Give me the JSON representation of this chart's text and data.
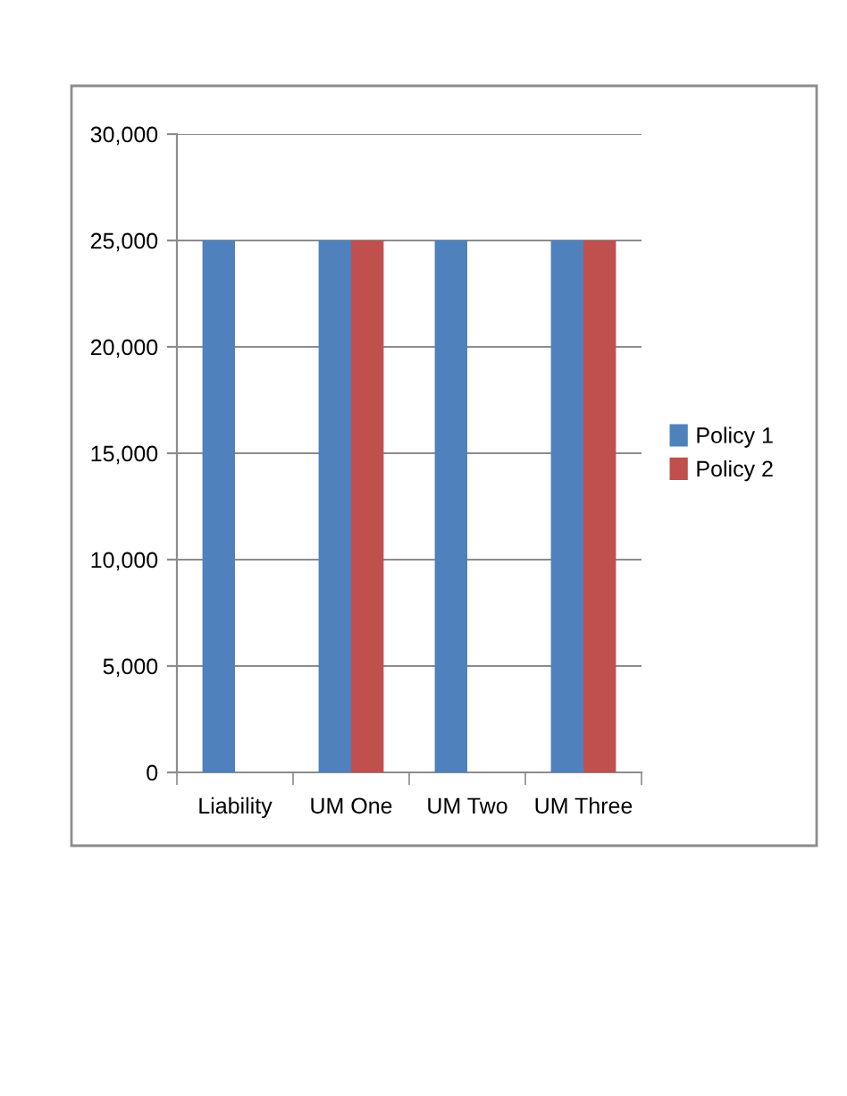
{
  "chart_data": {
    "type": "bar",
    "categories": [
      "Liability",
      "UM One",
      "UM Two",
      "UM Three"
    ],
    "series": [
      {
        "name": "Policy 1",
        "color": "#4f81bd",
        "values": [
          25000,
          25000,
          25000,
          25000
        ]
      },
      {
        "name": "Policy 2",
        "color": "#c0504d",
        "values": [
          null,
          25000,
          null,
          25000
        ]
      }
    ],
    "ylim": [
      0,
      30000
    ],
    "yticks": [
      {
        "value": 0,
        "label": "0"
      },
      {
        "value": 5000,
        "label": "5,000"
      },
      {
        "value": 10000,
        "label": "10,000"
      },
      {
        "value": 15000,
        "label": "15,000"
      },
      {
        "value": 20000,
        "label": "20,000"
      },
      {
        "value": 25000,
        "label": "25,000"
      },
      {
        "value": 30000,
        "label": "30,000"
      }
    ],
    "grid": "y",
    "legend": "right"
  }
}
